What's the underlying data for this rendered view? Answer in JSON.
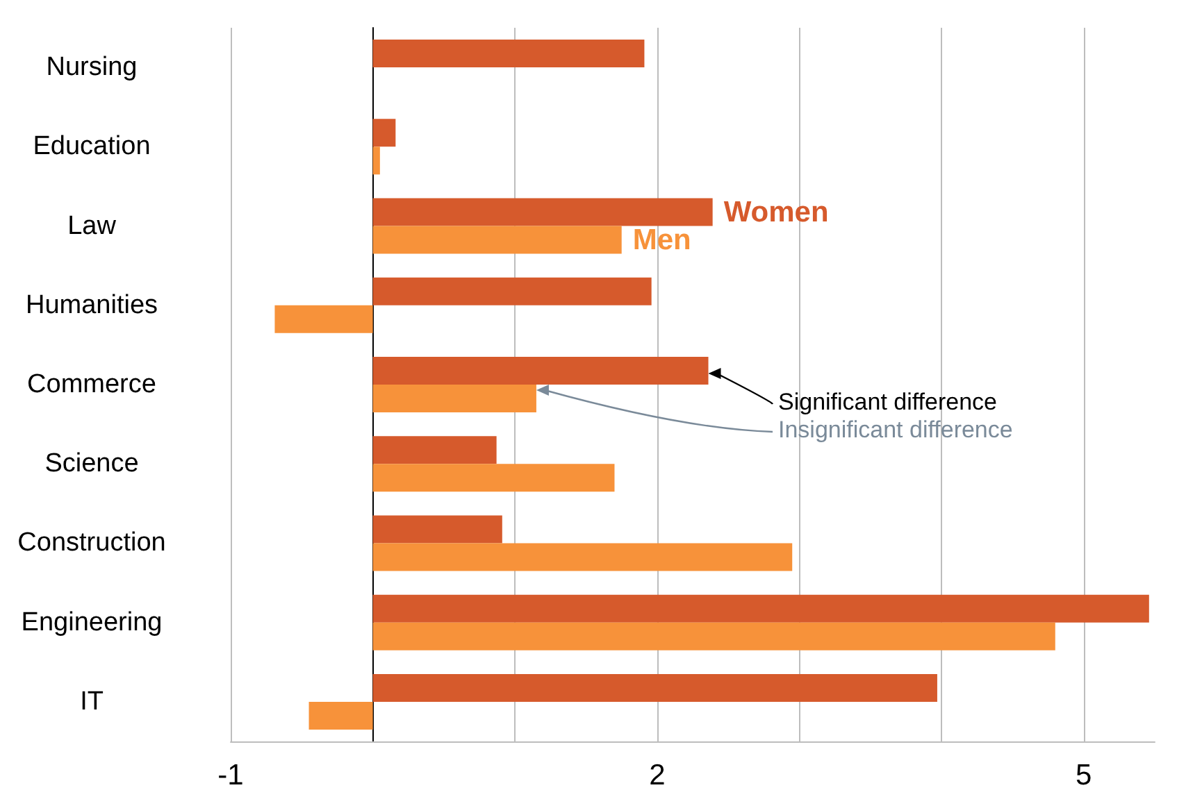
{
  "chart_data": {
    "type": "bar",
    "orientation": "horizontal",
    "categories": [
      "Nursing",
      "Education",
      "Law",
      "Humanities",
      "Commerce",
      "Science",
      "Construction",
      "Engineering",
      "IT"
    ],
    "series": [
      {
        "name": "Women",
        "color": "#d65a2c",
        "values": [
          1.91,
          0.16,
          2.39,
          1.96,
          2.36,
          0.87,
          0.91,
          5.46,
          3.97
        ]
      },
      {
        "name": "Men",
        "color": "#f7923a",
        "values": [
          null,
          0.05,
          1.75,
          -0.69,
          1.15,
          1.7,
          2.95,
          4.8,
          -0.45
        ]
      }
    ],
    "xlim": [
      -1,
      5.5
    ],
    "xticks": [
      -1,
      {
        "value": 0,
        "label": null
      },
      {
        "value": 1,
        "label": null
      },
      2,
      {
        "value": 3,
        "label": null
      },
      {
        "value": 4,
        "label": null
      },
      5
    ],
    "grid": "x",
    "legend": false,
    "annotations": [
      {
        "text": "Significant difference",
        "x": 2.36,
        "y": "Commerce"
      },
      {
        "text": "Insignificant difference",
        "x": 1.15,
        "y": "Commerce"
      }
    ]
  }
}
